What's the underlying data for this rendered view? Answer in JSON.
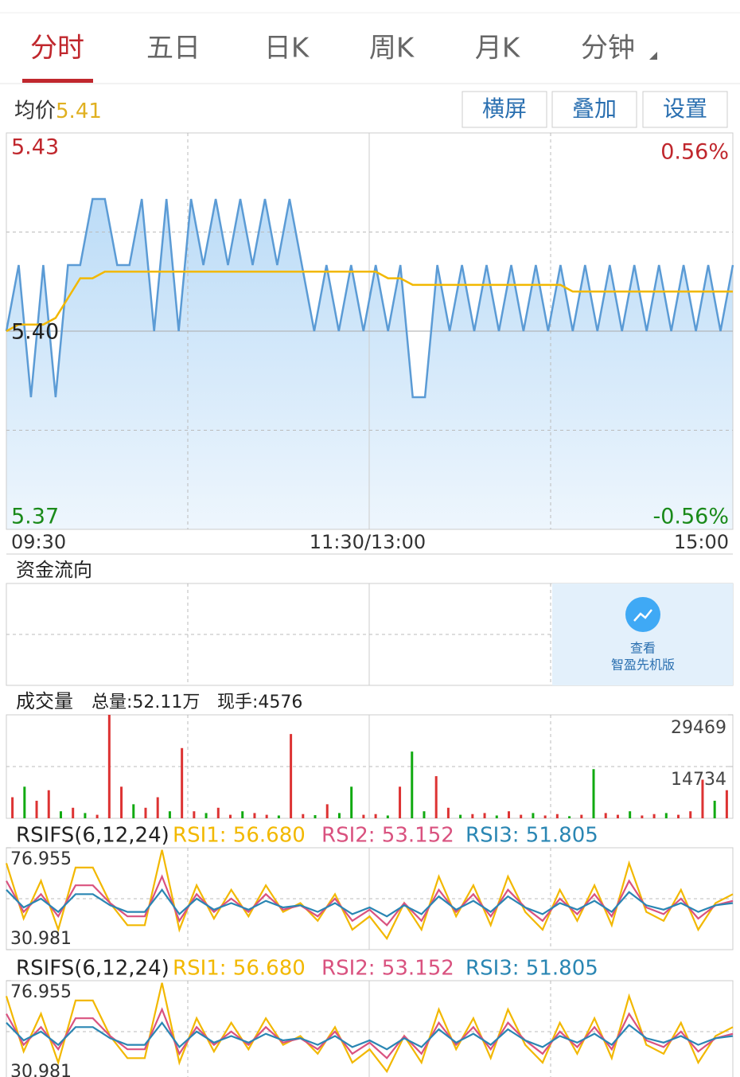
{
  "tabs": [
    "分时",
    "五日",
    "日K",
    "周K",
    "月K",
    "分钟"
  ],
  "avg_label": "均价",
  "avg_value": "5.41",
  "buttons": [
    "横屏",
    "叠加",
    "设置"
  ],
  "price_chart": {
    "type": "line",
    "ylim": [
      5.37,
      5.43
    ],
    "top_label": "5.43",
    "mid_label": "5.40",
    "bottom_label": "5.37",
    "top_pct": "0.56%",
    "bottom_pct": "-0.56%",
    "time_labels": [
      "09:30",
      "11:30/13:00",
      "15:00"
    ],
    "series": [
      {
        "color": "#5b9bd5",
        "values": [
          5.4,
          5.41,
          5.39,
          5.41,
          5.39,
          5.41,
          5.41,
          5.42,
          5.42,
          5.41,
          5.41,
          5.42,
          5.4,
          5.42,
          5.4,
          5.42,
          5.41,
          5.42,
          5.41,
          5.42,
          5.41,
          5.42,
          5.41,
          5.42,
          5.41,
          5.4,
          5.41,
          5.4,
          5.41,
          5.4,
          5.41,
          5.4,
          5.41,
          5.39,
          5.39,
          5.41,
          5.4,
          5.41,
          5.4,
          5.41,
          5.4,
          5.41,
          5.4,
          5.41,
          5.4,
          5.41,
          5.4,
          5.41,
          5.4,
          5.41,
          5.4,
          5.41,
          5.4,
          5.41,
          5.4,
          5.41,
          5.4,
          5.41,
          5.4,
          5.41
        ]
      },
      {
        "color": "#f2b800",
        "values": [
          5.4,
          5.401,
          5.401,
          5.401,
          5.402,
          5.405,
          5.408,
          5.408,
          5.409,
          5.409,
          5.409,
          5.409,
          5.409,
          5.409,
          5.409,
          5.409,
          5.409,
          5.409,
          5.409,
          5.409,
          5.409,
          5.409,
          5.409,
          5.409,
          5.409,
          5.409,
          5.409,
          5.409,
          5.409,
          5.409,
          5.409,
          5.408,
          5.408,
          5.407,
          5.407,
          5.407,
          5.407,
          5.407,
          5.407,
          5.407,
          5.407,
          5.407,
          5.407,
          5.407,
          5.407,
          5.407,
          5.406,
          5.406,
          5.406,
          5.406,
          5.406,
          5.406,
          5.406,
          5.406,
          5.406,
          5.406,
          5.406,
          5.406,
          5.406,
          5.406
        ]
      }
    ]
  },
  "fund_flow": {
    "title": "资金流向",
    "promo": [
      "查看",
      "智盈先机版"
    ]
  },
  "volume": {
    "type": "bar",
    "title": "成交量",
    "total": "总量:52.11万",
    "current": "现手:4576",
    "ylim": [
      0,
      29469
    ],
    "yticks": [
      29469,
      14734
    ],
    "values": [
      6000,
      9000,
      5000,
      8000,
      2000,
      3000,
      1500,
      1000,
      29469,
      9000,
      4000,
      3000,
      6000,
      2000,
      20000,
      2000,
      1500,
      3000,
      1000,
      2000,
      1500,
      1000,
      800,
      24000,
      1200,
      900,
      4000,
      1500,
      9000,
      1000,
      1200,
      800,
      9000,
      19000,
      2000,
      12000,
      3000,
      1000,
      1200,
      1500,
      800,
      2000,
      1000,
      1500,
      800,
      1200,
      600,
      1000,
      14000,
      1500,
      1000,
      2000,
      800,
      1200,
      1500,
      1000,
      2000,
      11000,
      5000,
      8000
    ],
    "colors": [
      "#d33",
      "#1a1",
      "#d33",
      "#d33",
      "#1a1",
      "#d33",
      "#1a1",
      "#d33",
      "#d33",
      "#d33",
      "#1a1",
      "#d33",
      "#d33",
      "#1a1",
      "#d33",
      "#d33",
      "#1a1",
      "#d33",
      "#d33",
      "#1a1",
      "#d33",
      "#d33",
      "#1a1",
      "#d33",
      "#d33",
      "#1a1",
      "#d33",
      "#1a1",
      "#1a1",
      "#d33",
      "#d33",
      "#1a1",
      "#d33",
      "#1a1",
      "#1a1",
      "#d33",
      "#d33",
      "#1a1",
      "#d33",
      "#d33",
      "#1a1",
      "#d33",
      "#d33",
      "#1a1",
      "#d33",
      "#d33",
      "#1a1",
      "#d33",
      "#1a1",
      "#d33",
      "#d33",
      "#1a1",
      "#d33",
      "#d33",
      "#1a1",
      "#d33",
      "#d33",
      "#d33",
      "#1a1",
      "#d33"
    ]
  },
  "rsi_panels": [
    {
      "type": "line",
      "label": "RSIFS(6,12,24)",
      "ylim": [
        30.981,
        76.955
      ],
      "yticks": [
        76.955,
        30.981
      ],
      "series": [
        {
          "name": "RSI1: 56.680",
          "color": "#f2b800",
          "values": [
            70,
            45,
            62,
            40,
            68,
            68,
            52,
            42,
            42,
            76,
            40,
            60,
            45,
            58,
            46,
            60,
            48,
            52,
            44,
            56,
            40,
            46,
            36,
            52,
            40,
            64,
            46,
            60,
            42,
            64,
            48,
            40,
            58,
            44,
            60,
            42,
            70,
            48,
            44,
            58,
            40,
            52,
            56
          ]
        },
        {
          "name": "RSI2: 53.152",
          "color": "#d9527f",
          "values": [
            62,
            48,
            56,
            46,
            60,
            60,
            52,
            46,
            46,
            64,
            44,
            56,
            48,
            54,
            48,
            56,
            49,
            51,
            46,
            54,
            44,
            49,
            42,
            52,
            44,
            58,
            48,
            56,
            46,
            58,
            50,
            44,
            54,
            47,
            56,
            46,
            62,
            50,
            47,
            54,
            45,
            51,
            53
          ]
        },
        {
          "name": "RSI3: 51.805",
          "color": "#2a86b3",
          "values": [
            58,
            50,
            54,
            48,
            56,
            56,
            51,
            48,
            48,
            58,
            47,
            54,
            49,
            52,
            49,
            53,
            50,
            51,
            48,
            52,
            47,
            50,
            46,
            51,
            47,
            55,
            49,
            53,
            48,
            55,
            50,
            47,
            52,
            49,
            53,
            48,
            57,
            51,
            49,
            52,
            48,
            51,
            52
          ]
        }
      ]
    },
    {
      "type": "line",
      "label": "RSIFS(6,12,24)",
      "ylim": [
        30.981,
        76.955
      ],
      "yticks": [
        76.955,
        30.981
      ],
      "series": [
        {
          "name": "RSI1: 56.680",
          "color": "#f2b800",
          "values": [
            70,
            45,
            62,
            40,
            68,
            68,
            52,
            42,
            42,
            76,
            40,
            60,
            45,
            58,
            46,
            60,
            48,
            52,
            44,
            56,
            40,
            46,
            36,
            52,
            40,
            64,
            46,
            60,
            42,
            64,
            48,
            40,
            58,
            44,
            60,
            42,
            70,
            48,
            44,
            58,
            40,
            52,
            56
          ]
        },
        {
          "name": "RSI2: 53.152",
          "color": "#d9527f",
          "values": [
            62,
            48,
            56,
            46,
            60,
            60,
            52,
            46,
            46,
            64,
            44,
            56,
            48,
            54,
            48,
            56,
            49,
            51,
            46,
            54,
            44,
            49,
            42,
            52,
            44,
            58,
            48,
            56,
            46,
            58,
            50,
            44,
            54,
            47,
            56,
            46,
            62,
            50,
            47,
            54,
            45,
            51,
            53
          ]
        },
        {
          "name": "RSI3: 51.805",
          "color": "#2a86b3",
          "values": [
            58,
            50,
            54,
            48,
            56,
            56,
            51,
            48,
            48,
            58,
            47,
            54,
            49,
            52,
            49,
            53,
            50,
            51,
            48,
            52,
            47,
            50,
            46,
            51,
            47,
            55,
            49,
            53,
            48,
            55,
            50,
            47,
            52,
            49,
            53,
            48,
            57,
            51,
            49,
            52,
            48,
            51,
            52
          ]
        }
      ]
    }
  ]
}
